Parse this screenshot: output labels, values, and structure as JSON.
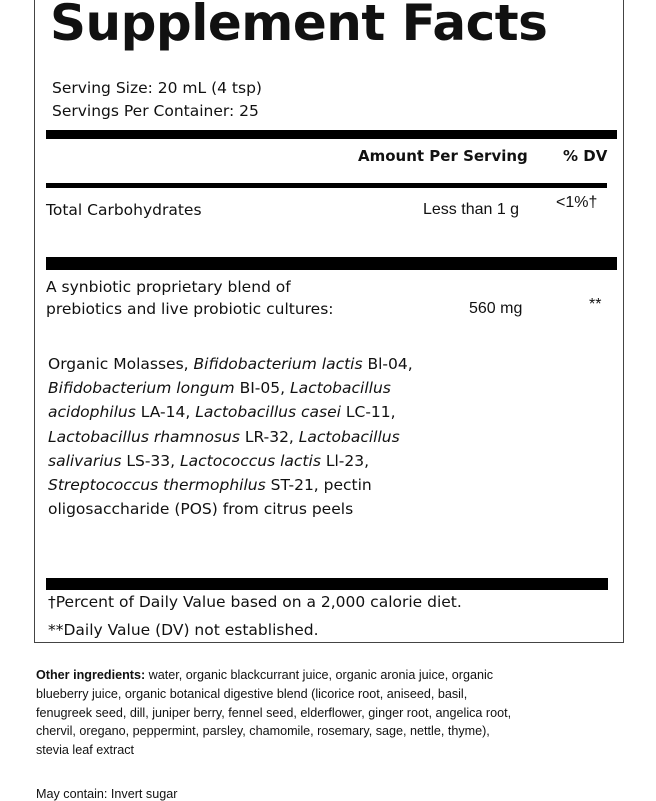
{
  "title": "Supplement Facts",
  "serving_size": "Serving Size: 20 mL (4 tsp)",
  "servings_per_container": "Servings Per Container: 25",
  "header": {
    "amount": "Amount Per Serving",
    "dv": "% DV"
  },
  "rows": [
    {
      "name": "Total Carbohydrates",
      "amount": "Less than 1 g",
      "dv": "<1%†"
    },
    {
      "name_line1": "A synbiotic proprietary blend of",
      "name_line2": "prebiotics and live probiotic cultures:",
      "amount": "560 mg",
      "dv": "**"
    }
  ],
  "ingredients": [
    {
      "text": "Organic Molasses, ",
      "italic": false
    },
    {
      "text": "Bifidobacterium lactis",
      "italic": true
    },
    {
      "text": " Bl-04, ",
      "italic": false
    },
    {
      "text": "Bifidobacterium longum",
      "italic": true
    },
    {
      "text": " BI-05, ",
      "italic": false
    },
    {
      "text": "Lactobacillus acidophilus",
      "italic": true
    },
    {
      "text": " LA-14, ",
      "italic": false
    },
    {
      "text": "Lactobacillus casei",
      "italic": true
    },
    {
      "text": " LC-11, ",
      "italic": false
    },
    {
      "text": "Lactobacillus rhamnosus",
      "italic": true
    },
    {
      "text": " LR-32, ",
      "italic": false
    },
    {
      "text": "Lactobacillus salivarius",
      "italic": true
    },
    {
      "text": " LS-33, ",
      "italic": false
    },
    {
      "text": "Lactococcus lactis",
      "italic": true
    },
    {
      "text": " Ll-23, ",
      "italic": false
    },
    {
      "text": "Streptococcus thermophilus",
      "italic": true
    },
    {
      "text": " ST-21, ",
      "italic": false
    },
    {
      "text": "pectin oligosaccharide (POS) from citrus peels",
      "italic": false
    }
  ],
  "footnotes": [
    "†Percent of Daily Value based on a 2,000 calorie diet.",
    "**Daily Value (DV) not established."
  ],
  "other_label": "Other ingredients:",
  "other_text": " water, organic blackcurrant juice, organic aronia juice, organic blueberry juice, organic botanical digestive blend (licorice root, aniseed, basil, fenugreek seed, dill, juniper berry, fennel seed, elderflower, ginger root, angelica root, chervil, oregano, peppermint, parsley, chamomile, rosemary, sage, nettle, thyme), stevia leaf extract",
  "may_contain": "May contain: Invert sugar"
}
